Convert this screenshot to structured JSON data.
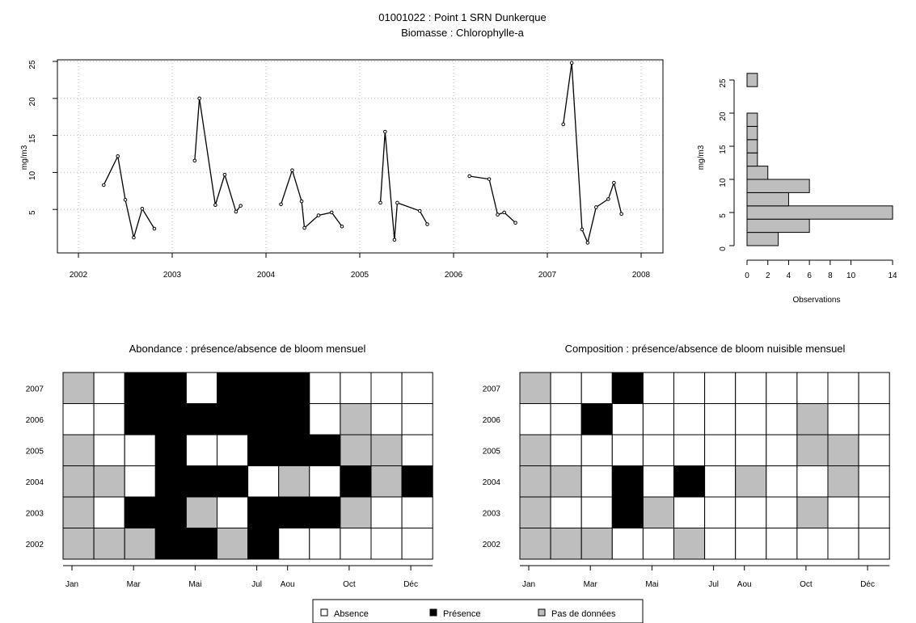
{
  "title": {
    "line1": "01001022 : Point 1 SRN Dunkerque",
    "line2": "Biomasse : Chlorophylle-a"
  },
  "colors": {
    "presence": "#000000",
    "absence": "#ffffff",
    "no_data": "#bebebe",
    "grid": "#bbbbbb"
  },
  "chart_data": [
    {
      "type": "line",
      "name": "timeseries",
      "ylabel": "mg/m3",
      "xlabel": "",
      "xlim": [
        2002,
        2008
      ],
      "ylim": [
        0,
        25
      ],
      "xticks": [
        "2002",
        "2003",
        "2004",
        "2005",
        "2006",
        "2007",
        "2008"
      ],
      "yticks": [
        "5",
        "10",
        "15",
        "20",
        "25"
      ],
      "grid": true,
      "segments": [
        {
          "x": [
            2002.27,
            2002.42,
            2002.5,
            2002.59,
            2002.68,
            2002.81
          ],
          "y": [
            8.3,
            12.2,
            6.3,
            1.2,
            5.1,
            2.4
          ]
        },
        {
          "x": [
            2003.24,
            2003.29,
            2003.46,
            2003.56,
            2003.68,
            2003.73
          ],
          "y": [
            11.6,
            20.0,
            5.6,
            9.7,
            4.7,
            5.5
          ]
        },
        {
          "x": [
            2004.16,
            2004.28,
            2004.38,
            2004.41,
            2004.56,
            2004.7,
            2004.81
          ],
          "y": [
            5.7,
            10.3,
            6.1,
            2.5,
            4.2,
            4.6,
            2.7
          ]
        },
        {
          "x": [
            2005.22,
            2005.27,
            2005.37,
            2005.4,
            2005.64,
            2005.72
          ],
          "y": [
            5.9,
            15.5,
            0.9,
            5.9,
            4.8,
            3.0
          ]
        },
        {
          "x": [
            2006.17,
            2006.38,
            2006.47,
            2006.54,
            2006.66
          ],
          "y": [
            9.5,
            9.1,
            4.3,
            4.6,
            3.2
          ]
        },
        {
          "x": [
            2007.17,
            2007.26,
            2007.37,
            2007.43,
            2007.52,
            2007.65,
            2007.71,
            2007.79
          ],
          "y": [
            16.5,
            24.8,
            2.3,
            0.5,
            5.3,
            6.4,
            8.6,
            4.4
          ]
        }
      ]
    },
    {
      "type": "bar",
      "name": "histogram",
      "orientation": "horizontal",
      "xlabel": "Observations",
      "ylabel": "mg/m3",
      "xlim": [
        0,
        14
      ],
      "ylim": [
        0,
        25
      ],
      "xticks": [
        "0",
        "2",
        "4",
        "6",
        "8",
        "10",
        "14"
      ],
      "yticks": [
        "0",
        "5",
        "10",
        "15",
        "20",
        "25"
      ],
      "bins": [
        {
          "from": 0,
          "to": 2,
          "count": 3
        },
        {
          "from": 2,
          "to": 4,
          "count": 6
        },
        {
          "from": 4,
          "to": 6,
          "count": 14
        },
        {
          "from": 6,
          "to": 8,
          "count": 4
        },
        {
          "from": 8,
          "to": 10,
          "count": 6
        },
        {
          "from": 10,
          "to": 12,
          "count": 2
        },
        {
          "from": 12,
          "to": 14,
          "count": 1
        },
        {
          "from": 14,
          "to": 16,
          "count": 1
        },
        {
          "from": 16,
          "to": 18,
          "count": 1
        },
        {
          "from": 18,
          "to": 20,
          "count": 1
        },
        {
          "from": 24,
          "to": 26,
          "count": 1
        }
      ]
    },
    {
      "type": "heatmap",
      "name": "abondance",
      "title": "Abondance : présence/absence de bloom mensuel",
      "years": [
        "2007",
        "2006",
        "2005",
        "2004",
        "2003",
        "2002"
      ],
      "month_ticks": [
        {
          "col": 0,
          "label": "Jan"
        },
        {
          "col": 2,
          "label": "Mar"
        },
        {
          "col": 4,
          "label": "Mai"
        },
        {
          "col": 6,
          "label": "Jul"
        },
        {
          "col": 7,
          "label": "Aou"
        },
        {
          "col": 9,
          "label": "Oct"
        },
        {
          "col": 11,
          "label": "Déc"
        }
      ],
      "legend_codes": "0 = Absence, 1 = Présence, 2 = Pas de données",
      "grid": [
        [
          2,
          0,
          1,
          1,
          0,
          1,
          1,
          1,
          0,
          0,
          0,
          0
        ],
        [
          0,
          0,
          1,
          1,
          1,
          1,
          1,
          1,
          0,
          2,
          0,
          0
        ],
        [
          2,
          0,
          0,
          1,
          0,
          0,
          1,
          1,
          1,
          2,
          2,
          0
        ],
        [
          2,
          2,
          0,
          1,
          1,
          1,
          0,
          2,
          0,
          1,
          2,
          1
        ],
        [
          2,
          0,
          1,
          1,
          2,
          0,
          1,
          1,
          1,
          2,
          0,
          0
        ],
        [
          2,
          2,
          2,
          1,
          1,
          2,
          1,
          0,
          0,
          0,
          0,
          0
        ]
      ]
    },
    {
      "type": "heatmap",
      "name": "composition",
      "title": "Composition : présence/absence de bloom nuisible mensuel",
      "years": [
        "2007",
        "2006",
        "2005",
        "2004",
        "2003",
        "2002"
      ],
      "month_ticks": [
        {
          "col": 0,
          "label": "Jan"
        },
        {
          "col": 2,
          "label": "Mar"
        },
        {
          "col": 4,
          "label": "Mai"
        },
        {
          "col": 6,
          "label": "Jul"
        },
        {
          "col": 7,
          "label": "Aou"
        },
        {
          "col": 9,
          "label": "Oct"
        },
        {
          "col": 11,
          "label": "Déc"
        }
      ],
      "grid": [
        [
          2,
          0,
          0,
          1,
          0,
          0,
          0,
          0,
          0,
          0,
          0,
          0
        ],
        [
          0,
          0,
          1,
          0,
          0,
          0,
          0,
          0,
          0,
          2,
          0,
          0
        ],
        [
          2,
          0,
          0,
          0,
          0,
          0,
          0,
          0,
          0,
          2,
          2,
          0
        ],
        [
          2,
          2,
          0,
          1,
          0,
          1,
          0,
          2,
          0,
          0,
          2,
          0
        ],
        [
          2,
          0,
          0,
          1,
          2,
          0,
          0,
          0,
          0,
          2,
          0,
          0
        ],
        [
          2,
          2,
          2,
          0,
          0,
          2,
          0,
          0,
          0,
          0,
          0,
          0
        ]
      ]
    }
  ],
  "legend": {
    "items": [
      {
        "label": "Absence",
        "code": 0
      },
      {
        "label": "Présence",
        "code": 1
      },
      {
        "label": "Pas de données",
        "code": 2
      }
    ]
  }
}
